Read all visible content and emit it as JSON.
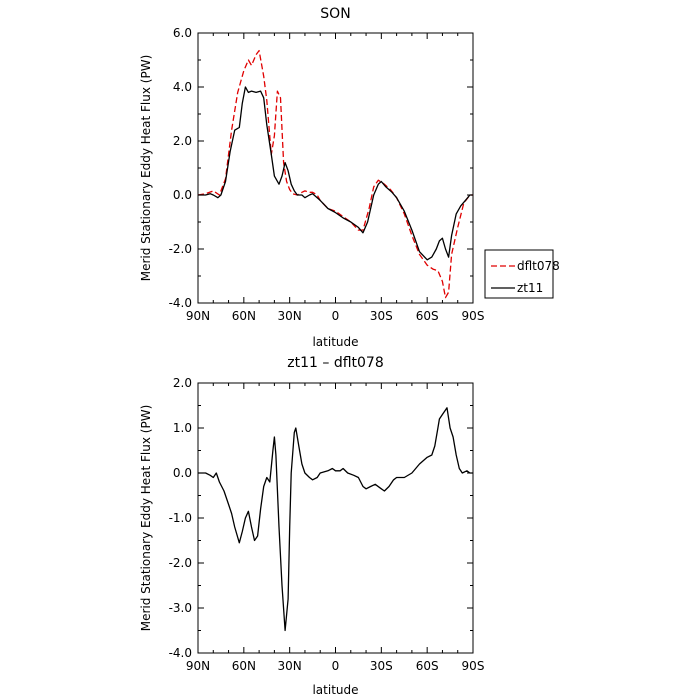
{
  "chart_data": [
    {
      "type": "line",
      "title": "SON",
      "xlabel": "latitude",
      "ylabel": "Merid Stationary Eddy Heat Flux (PW)",
      "xlim": [
        90,
        -90
      ],
      "ylim": [
        -4.0,
        6.0
      ],
      "xticks": [
        90,
        60,
        30,
        0,
        -30,
        -60,
        -90
      ],
      "xtick_labels": [
        "90N",
        "60N",
        "30N",
        "0",
        "30S",
        "60S",
        "90S"
      ],
      "yticks": [
        -4.0,
        -2.0,
        0.0,
        2.0,
        4.0,
        6.0
      ],
      "ytick_labels": [
        "-4.0",
        "-2.0",
        "0.0",
        "2.0",
        "4.0",
        "6.0"
      ],
      "legend": {
        "placement": "right"
      },
      "series": [
        {
          "name": "dflt078",
          "color": "#e00000",
          "style": "dashed",
          "points": [
            [
              90,
              0.0
            ],
            [
              85,
              0.05
            ],
            [
              80,
              0.15
            ],
            [
              76,
              0.0
            ],
            [
              72,
              0.6
            ],
            [
              68,
              2.4
            ],
            [
              64,
              3.8
            ],
            [
              60,
              4.6
            ],
            [
              57,
              5.0
            ],
            [
              55,
              4.8
            ],
            [
              52,
              5.2
            ],
            [
              50,
              5.35
            ],
            [
              47,
              4.4
            ],
            [
              45,
              3.5
            ],
            [
              42,
              1.5
            ],
            [
              40,
              2.2
            ],
            [
              38,
              3.85
            ],
            [
              36,
              3.6
            ],
            [
              34,
              1.2
            ],
            [
              32,
              0.5
            ],
            [
              30,
              0.2
            ],
            [
              28,
              0.05
            ],
            [
              25,
              0.0
            ],
            [
              22,
              0.1
            ],
            [
              20,
              0.15
            ],
            [
              17,
              0.1
            ],
            [
              15,
              0.1
            ],
            [
              12,
              0.0
            ],
            [
              10,
              -0.2
            ],
            [
              5,
              -0.5
            ],
            [
              0,
              -0.6
            ],
            [
              -5,
              -0.8
            ],
            [
              -10,
              -1.0
            ],
            [
              -15,
              -1.3
            ],
            [
              -18,
              -1.3
            ],
            [
              -22,
              -0.5
            ],
            [
              -25,
              0.3
            ],
            [
              -28,
              0.55
            ],
            [
              -32,
              0.4
            ],
            [
              -36,
              0.2
            ],
            [
              -40,
              -0.1
            ],
            [
              -45,
              -0.7
            ],
            [
              -50,
              -1.5
            ],
            [
              -55,
              -2.2
            ],
            [
              -60,
              -2.6
            ],
            [
              -64,
              -2.75
            ],
            [
              -67,
              -2.8
            ],
            [
              -70,
              -3.2
            ],
            [
              -72,
              -3.8
            ],
            [
              -74,
              -3.6
            ],
            [
              -76,
              -2.2
            ],
            [
              -80,
              -1.2
            ],
            [
              -84,
              -0.3
            ],
            [
              -88,
              0.0
            ],
            [
              -90,
              0.0
            ]
          ]
        },
        {
          "name": "zt11",
          "color": "#000000",
          "style": "solid",
          "points": [
            [
              90,
              0.0
            ],
            [
              85,
              0.0
            ],
            [
              82,
              0.05
            ],
            [
              80,
              0.0
            ],
            [
              77,
              -0.1
            ],
            [
              75,
              0.0
            ],
            [
              72,
              0.5
            ],
            [
              69,
              1.6
            ],
            [
              66,
              2.4
            ],
            [
              63,
              2.5
            ],
            [
              61,
              3.4
            ],
            [
              59,
              4.0
            ],
            [
              57,
              3.8
            ],
            [
              55,
              3.85
            ],
            [
              52,
              3.8
            ],
            [
              49,
              3.85
            ],
            [
              47,
              3.6
            ],
            [
              45,
              2.6
            ],
            [
              42,
              1.5
            ],
            [
              40,
              0.7
            ],
            [
              37,
              0.4
            ],
            [
              35,
              0.7
            ],
            [
              33,
              1.2
            ],
            [
              31,
              0.9
            ],
            [
              29,
              0.4
            ],
            [
              27,
              0.15
            ],
            [
              25,
              0.0
            ],
            [
              22,
              0.0
            ],
            [
              20,
              -0.1
            ],
            [
              17,
              0.0
            ],
            [
              15,
              0.05
            ],
            [
              12,
              -0.1
            ],
            [
              10,
              -0.2
            ],
            [
              5,
              -0.5
            ],
            [
              0,
              -0.65
            ],
            [
              -5,
              -0.85
            ],
            [
              -10,
              -1.0
            ],
            [
              -15,
              -1.2
            ],
            [
              -18,
              -1.4
            ],
            [
              -21,
              -1.0
            ],
            [
              -25,
              0.0
            ],
            [
              -28,
              0.4
            ],
            [
              -30,
              0.5
            ],
            [
              -33,
              0.3
            ],
            [
              -37,
              0.1
            ],
            [
              -40,
              -0.1
            ],
            [
              -45,
              -0.6
            ],
            [
              -50,
              -1.3
            ],
            [
              -55,
              -2.1
            ],
            [
              -60,
              -2.4
            ],
            [
              -63,
              -2.3
            ],
            [
              -66,
              -2.0
            ],
            [
              -68,
              -1.7
            ],
            [
              -70,
              -1.6
            ],
            [
              -72,
              -2.0
            ],
            [
              -74,
              -2.3
            ],
            [
              -76,
              -1.5
            ],
            [
              -79,
              -0.7
            ],
            [
              -82,
              -0.4
            ],
            [
              -85,
              -0.2
            ],
            [
              -88,
              0.0
            ],
            [
              -90,
              0.0
            ]
          ]
        }
      ]
    },
    {
      "type": "line",
      "title": "zt11 – dflt078",
      "xlabel": "latitude",
      "ylabel": "Merid Stationary Eddy Heat Flux (PW)",
      "xlim": [
        90,
        -90
      ],
      "ylim": [
        -4.0,
        2.0
      ],
      "xticks": [
        90,
        60,
        30,
        0,
        -30,
        -60,
        -90
      ],
      "xtick_labels": [
        "90N",
        "60N",
        "30N",
        "0",
        "30S",
        "60S",
        "90S"
      ],
      "yticks": [
        -4.0,
        -3.0,
        -2.0,
        -1.0,
        0.0,
        1.0,
        2.0
      ],
      "ytick_labels": [
        "-4.0",
        "-3.0",
        "-2.0",
        "-1.0",
        "0.0",
        "1.0",
        "2.0"
      ],
      "series": [
        {
          "color": "#000000",
          "style": "solid",
          "points": [
            [
              90,
              0.0
            ],
            [
              85,
              0.0
            ],
            [
              82,
              -0.05
            ],
            [
              80,
              -0.1
            ],
            [
              78,
              0.0
            ],
            [
              76,
              -0.2
            ],
            [
              73,
              -0.4
            ],
            [
              70,
              -0.7
            ],
            [
              68,
              -0.9
            ],
            [
              66,
              -1.2
            ],
            [
              63,
              -1.55
            ],
            [
              61,
              -1.3
            ],
            [
              59,
              -1.0
            ],
            [
              57,
              -0.85
            ],
            [
              55,
              -1.2
            ],
            [
              53,
              -1.5
            ],
            [
              51,
              -1.4
            ],
            [
              49,
              -0.8
            ],
            [
              47,
              -0.3
            ],
            [
              45,
              -0.1
            ],
            [
              43,
              -0.2
            ],
            [
              41,
              0.5
            ],
            [
              40,
              0.8
            ],
            [
              39,
              0.4
            ],
            [
              37,
              -1.2
            ],
            [
              35,
              -2.5
            ],
            [
              33,
              -3.5
            ],
            [
              31,
              -2.8
            ],
            [
              30,
              -1.2
            ],
            [
              29,
              0.0
            ],
            [
              27,
              0.9
            ],
            [
              26,
              1.0
            ],
            [
              24,
              0.6
            ],
            [
              22,
              0.2
            ],
            [
              20,
              0.0
            ],
            [
              17,
              -0.1
            ],
            [
              15,
              -0.15
            ],
            [
              12,
              -0.1
            ],
            [
              10,
              0.0
            ],
            [
              5,
              0.05
            ],
            [
              2,
              0.1
            ],
            [
              0,
              0.05
            ],
            [
              -3,
              0.05
            ],
            [
              -5,
              0.1
            ],
            [
              -8,
              0.0
            ],
            [
              -12,
              -0.05
            ],
            [
              -15,
              -0.1
            ],
            [
              -18,
              -0.3
            ],
            [
              -20,
              -0.35
            ],
            [
              -23,
              -0.3
            ],
            [
              -26,
              -0.25
            ],
            [
              -30,
              -0.35
            ],
            [
              -32,
              -0.4
            ],
            [
              -35,
              -0.3
            ],
            [
              -38,
              -0.15
            ],
            [
              -40,
              -0.1
            ],
            [
              -45,
              -0.1
            ],
            [
              -50,
              0.0
            ],
            [
              -55,
              0.2
            ],
            [
              -60,
              0.35
            ],
            [
              -63,
              0.4
            ],
            [
              -65,
              0.6
            ],
            [
              -67,
              1.0
            ],
            [
              -68,
              1.2
            ],
            [
              -70,
              1.3
            ],
            [
              -72,
              1.4
            ],
            [
              -73,
              1.45
            ],
            [
              -75,
              1.0
            ],
            [
              -77,
              0.8
            ],
            [
              -79,
              0.4
            ],
            [
              -81,
              0.1
            ],
            [
              -83,
              0.0
            ],
            [
              -86,
              0.05
            ],
            [
              -88,
              0.0
            ],
            [
              -90,
              0.0
            ]
          ]
        }
      ]
    }
  ]
}
